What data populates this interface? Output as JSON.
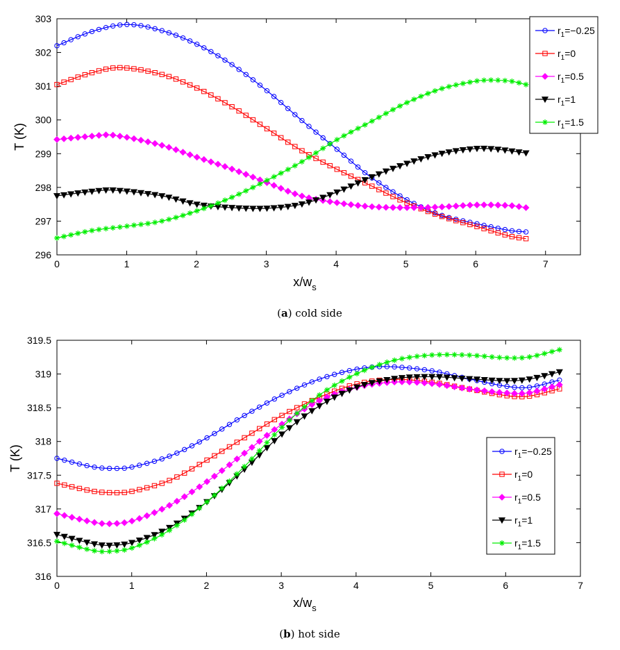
{
  "chart_data": [
    {
      "type": "line",
      "panel": "a",
      "caption_letter": "a",
      "caption_text": " cold side",
      "xlabel_main": "x/w",
      "xlabel_sub": "s",
      "ylabel": "T (K)",
      "xlim": [
        0,
        7.5
      ],
      "ylim": [
        296,
        303
      ],
      "xticks": [
        0,
        1,
        2,
        3,
        4,
        5,
        6,
        7
      ],
      "yticks": [
        296,
        297,
        298,
        299,
        300,
        301,
        302,
        303
      ],
      "legend_position": "top-right",
      "series": [
        {
          "name": "r1=−0.25",
          "label_main": "r",
          "label_sub": "1",
          "label_rest": "=−0.25",
          "color": "#0000ff",
          "marker": "circle",
          "points": [
            [
              0,
              302.2
            ],
            [
              0.5,
              302.62
            ],
            [
              1.0,
              302.83
            ],
            [
              1.5,
              302.65
            ],
            [
              2.0,
              302.25
            ],
            [
              2.5,
              301.65
            ],
            [
              3.0,
              300.88
            ],
            [
              3.5,
              300.0
            ],
            [
              4.0,
              299.15
            ],
            [
              4.5,
              298.3
            ],
            [
              5.0,
              297.65
            ],
            [
              5.5,
              297.18
            ],
            [
              6.0,
              296.93
            ],
            [
              6.5,
              296.72
            ],
            [
              6.72,
              296.68
            ]
          ]
        },
        {
          "name": "r1=0",
          "label_main": "r",
          "label_sub": "1",
          "label_rest": "=0",
          "color": "#ff0000",
          "marker": "square",
          "points": [
            [
              0,
              301.05
            ],
            [
              0.5,
              301.4
            ],
            [
              0.9,
              301.55
            ],
            [
              1.5,
              301.35
            ],
            [
              2.0,
              300.95
            ],
            [
              2.5,
              300.4
            ],
            [
              3.0,
              299.75
            ],
            [
              3.5,
              299.1
            ],
            [
              4.0,
              298.55
            ],
            [
              4.5,
              298.05
            ],
            [
              5.0,
              297.55
            ],
            [
              5.5,
              297.15
            ],
            [
              6.0,
              296.85
            ],
            [
              6.5,
              296.55
            ],
            [
              6.72,
              296.48
            ]
          ]
        },
        {
          "name": "r1=0.5",
          "label_main": "r",
          "label_sub": "1",
          "label_rest": "=0.5",
          "color": "#ff00ff",
          "marker": "diamond",
          "points": [
            [
              0,
              299.42
            ],
            [
              0.5,
              299.52
            ],
            [
              0.8,
              299.55
            ],
            [
              1.5,
              299.25
            ],
            [
              2.0,
              298.9
            ],
            [
              2.5,
              298.55
            ],
            [
              3.0,
              298.15
            ],
            [
              3.5,
              297.75
            ],
            [
              4.0,
              297.55
            ],
            [
              4.5,
              297.43
            ],
            [
              5.0,
              297.4
            ],
            [
              5.5,
              297.42
            ],
            [
              6.0,
              297.48
            ],
            [
              6.5,
              297.46
            ],
            [
              6.72,
              297.4
            ]
          ]
        },
        {
          "name": "r1=1",
          "label_main": "r",
          "label_sub": "1",
          "label_rest": "=1",
          "color": "#000000",
          "marker": "triangle-down",
          "points": [
            [
              0,
              297.75
            ],
            [
              0.5,
              297.88
            ],
            [
              0.8,
              297.92
            ],
            [
              1.5,
              297.75
            ],
            [
              2.0,
              297.5
            ],
            [
              2.5,
              297.4
            ],
            [
              3.0,
              297.38
            ],
            [
              3.5,
              297.5
            ],
            [
              4.0,
              297.85
            ],
            [
              4.5,
              298.3
            ],
            [
              5.0,
              298.7
            ],
            [
              5.5,
              299.0
            ],
            [
              6.0,
              299.15
            ],
            [
              6.3,
              299.13
            ],
            [
              6.72,
              299.02
            ]
          ]
        },
        {
          "name": "r1=1.5",
          "label_main": "r",
          "label_sub": "1",
          "label_rest": "=1.5",
          "color": "#00ee00",
          "marker": "star",
          "points": [
            [
              0,
              296.5
            ],
            [
              0.5,
              296.72
            ],
            [
              1.0,
              296.85
            ],
            [
              1.5,
              297.0
            ],
            [
              2.0,
              297.3
            ],
            [
              2.5,
              297.7
            ],
            [
              3.0,
              298.2
            ],
            [
              3.5,
              298.75
            ],
            [
              4.0,
              299.4
            ],
            [
              4.5,
              299.95
            ],
            [
              5.0,
              300.5
            ],
            [
              5.5,
              300.92
            ],
            [
              6.0,
              301.15
            ],
            [
              6.2,
              301.18
            ],
            [
              6.5,
              301.15
            ],
            [
              6.72,
              301.05
            ]
          ]
        }
      ]
    },
    {
      "type": "line",
      "panel": "b",
      "caption_letter": "b",
      "caption_text": " hot side",
      "xlabel_main": "x/w",
      "xlabel_sub": "s",
      "ylabel": "T (K)",
      "xlim": [
        0,
        7
      ],
      "ylim": [
        316,
        319.5
      ],
      "xticks": [
        0,
        1,
        2,
        3,
        4,
        5,
        6,
        7
      ],
      "yticks": [
        316,
        316.5,
        317,
        317.5,
        318,
        318.5,
        319,
        319.5
      ],
      "legend_position": "right",
      "series": [
        {
          "name": "r1=−0.25",
          "label_main": "r",
          "label_sub": "1",
          "label_rest": "=−0.25",
          "color": "#0000ff",
          "marker": "circle",
          "points": [
            [
              0,
              317.75
            ],
            [
              0.5,
              317.62
            ],
            [
              0.8,
              317.6
            ],
            [
              1.0,
              317.62
            ],
            [
              1.5,
              317.78
            ],
            [
              2.0,
              318.05
            ],
            [
              2.5,
              318.38
            ],
            [
              3.0,
              318.68
            ],
            [
              3.5,
              318.92
            ],
            [
              4.0,
              319.07
            ],
            [
              4.4,
              319.11
            ],
            [
              5.0,
              319.05
            ],
            [
              5.5,
              318.93
            ],
            [
              6.0,
              318.82
            ],
            [
              6.3,
              318.8
            ],
            [
              6.72,
              318.91
            ]
          ]
        },
        {
          "name": "r1=0",
          "label_main": "r",
          "label_sub": "1",
          "label_rest": "=0",
          "color": "#ff0000",
          "marker": "square",
          "points": [
            [
              0,
              317.38
            ],
            [
              0.5,
              317.26
            ],
            [
              0.8,
              317.24
            ],
            [
              1.0,
              317.26
            ],
            [
              1.5,
              317.42
            ],
            [
              2.0,
              317.72
            ],
            [
              2.5,
              318.05
            ],
            [
              3.0,
              318.38
            ],
            [
              3.5,
              318.65
            ],
            [
              4.0,
              318.85
            ],
            [
              4.5,
              318.92
            ],
            [
              5.0,
              318.88
            ],
            [
              5.5,
              318.78
            ],
            [
              6.0,
              318.68
            ],
            [
              6.3,
              318.67
            ],
            [
              6.72,
              318.78
            ]
          ]
        },
        {
          "name": "r1=0.5",
          "label_main": "r",
          "label_sub": "1",
          "label_rest": "=0.5",
          "color": "#ff00ff",
          "marker": "diamond",
          "points": [
            [
              0,
              316.93
            ],
            [
              0.5,
              316.8
            ],
            [
              0.7,
              316.78
            ],
            [
              1.0,
              316.82
            ],
            [
              1.5,
              317.05
            ],
            [
              2.0,
              317.4
            ],
            [
              2.5,
              317.82
            ],
            [
              3.0,
              318.25
            ],
            [
              3.5,
              318.6
            ],
            [
              4.0,
              318.8
            ],
            [
              4.5,
              318.88
            ],
            [
              5.0,
              318.86
            ],
            [
              5.5,
              318.78
            ],
            [
              6.0,
              318.72
            ],
            [
              6.3,
              318.72
            ],
            [
              6.72,
              318.84
            ]
          ]
        },
        {
          "name": "r1=1",
          "label_main": "r",
          "label_sub": "1",
          "label_rest": "=1",
          "color": "#000000",
          "marker": "triangle-down",
          "points": [
            [
              0,
              316.62
            ],
            [
              0.5,
              316.48
            ],
            [
              0.7,
              316.46
            ],
            [
              1.0,
              316.5
            ],
            [
              1.5,
              316.72
            ],
            [
              2.0,
              317.1
            ],
            [
              2.5,
              317.58
            ],
            [
              3.0,
              318.1
            ],
            [
              3.5,
              318.52
            ],
            [
              4.0,
              318.8
            ],
            [
              4.5,
              318.93
            ],
            [
              5.0,
              318.96
            ],
            [
              5.5,
              318.93
            ],
            [
              6.0,
              318.9
            ],
            [
              6.3,
              318.92
            ],
            [
              6.72,
              319.03
            ]
          ]
        },
        {
          "name": "r1=1.5",
          "label_main": "r",
          "label_sub": "1",
          "label_rest": "=1.5",
          "color": "#00ee00",
          "marker": "star",
          "points": [
            [
              0,
              316.52
            ],
            [
              0.5,
              316.38
            ],
            [
              0.7,
              316.37
            ],
            [
              1.0,
              316.42
            ],
            [
              1.5,
              316.68
            ],
            [
              2.0,
              317.1
            ],
            [
              2.5,
              317.62
            ],
            [
              3.0,
              318.2
            ],
            [
              3.5,
              318.68
            ],
            [
              4.0,
              319.0
            ],
            [
              4.5,
              319.2
            ],
            [
              5.0,
              319.28
            ],
            [
              5.5,
              319.28
            ],
            [
              6.0,
              319.24
            ],
            [
              6.3,
              319.25
            ],
            [
              6.72,
              319.36
            ]
          ]
        }
      ]
    }
  ]
}
